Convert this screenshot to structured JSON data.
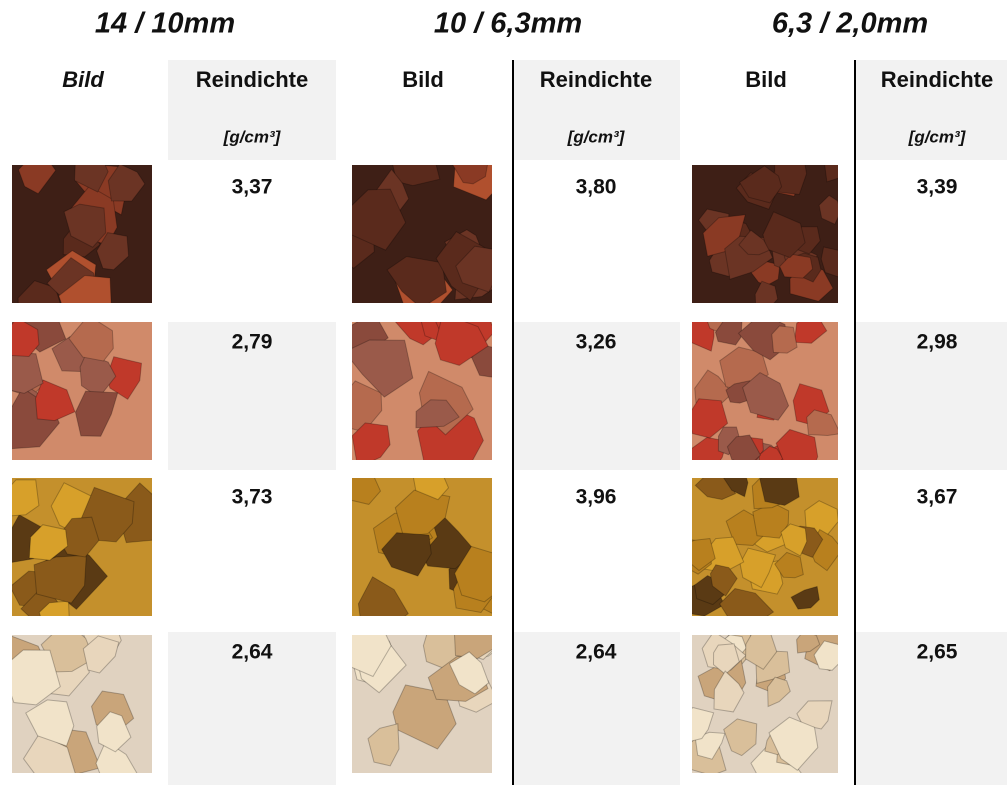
{
  "groups": [
    {
      "title": "14 / 10mm",
      "image_header": "Bild",
      "density_header": "Reindichte",
      "unit": "[g/cm³]",
      "values": [
        "3,37",
        "2,79",
        "3,73",
        "2,64"
      ]
    },
    {
      "title": "10 / 6,3mm",
      "image_header": "Bild",
      "density_header": "Reindichte",
      "unit": "[g/cm³]",
      "values": [
        "3,80",
        "3,26",
        "3,96",
        "2,64"
      ]
    },
    {
      "title": "6,3 / 2,0mm",
      "image_header": "Bild",
      "density_header": "Reindichte",
      "unit": "[g/cm³]",
      "values": [
        "3,39",
        "2,98",
        "3,67",
        "2,65"
      ]
    }
  ]
}
